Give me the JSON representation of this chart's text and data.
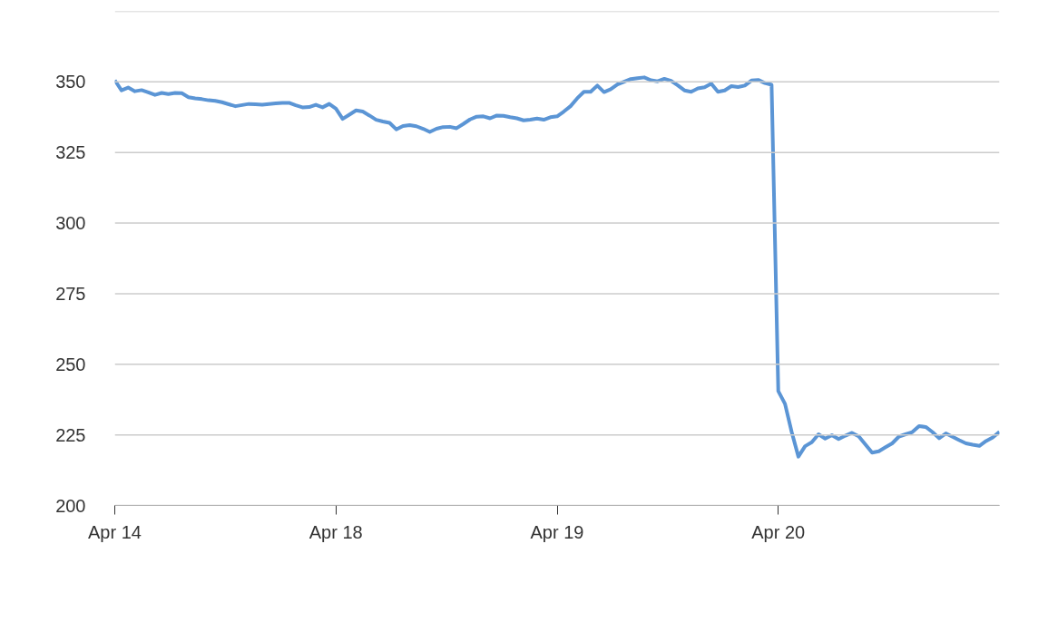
{
  "chart_data": {
    "type": "line",
    "categories": [
      "Apr 14",
      null,
      null,
      null,
      null,
      null,
      null,
      null,
      null,
      null,
      null,
      null,
      null,
      null,
      null,
      null,
      null,
      null,
      null,
      null,
      null,
      null,
      null,
      null,
      null,
      null,
      null,
      null,
      null,
      null,
      null,
      null,
      null,
      "Apr 18",
      null,
      null,
      null,
      null,
      null,
      null,
      null,
      null,
      null,
      null,
      null,
      null,
      null,
      null,
      null,
      null,
      null,
      null,
      null,
      null,
      null,
      null,
      null,
      null,
      null,
      null,
      null,
      null,
      null,
      null,
      null,
      null,
      "Apr 19",
      null,
      null,
      null,
      null,
      null,
      null,
      null,
      null,
      null,
      null,
      null,
      null,
      null,
      null,
      null,
      null,
      null,
      null,
      null,
      null,
      null,
      null,
      null,
      null,
      null,
      null,
      null,
      null,
      null,
      null,
      null,
      null,
      "Apr 20",
      null,
      null,
      null,
      null,
      null,
      null,
      null,
      null,
      null,
      null,
      null,
      null,
      null,
      null,
      null,
      null,
      null,
      null,
      null,
      null,
      null,
      null,
      null,
      null,
      null,
      null,
      null,
      null,
      null,
      null,
      null,
      null,
      null
    ],
    "series": [
      {
        "color": "#5b95d5",
        "values": [
          350.6,
          347.0,
          348.0,
          346.7,
          347.1,
          346.3,
          345.4,
          346.1,
          345.7,
          346.1,
          346.0,
          344.6,
          344.2,
          343.9,
          343.5,
          343.3,
          342.8,
          342.1,
          341.4,
          341.8,
          342.2,
          342.1,
          341.9,
          342.2,
          342.4,
          342.6,
          342.6,
          341.7,
          341.0,
          341.1,
          341.9,
          341.0,
          342.2,
          340.5,
          336.9,
          338.4,
          339.9,
          339.5,
          338.1,
          336.6,
          336.0,
          335.5,
          333.2,
          334.4,
          334.7,
          334.3,
          333.4,
          332.3,
          333.4,
          334.0,
          334.1,
          333.6,
          335.1,
          336.7,
          337.7,
          337.8,
          337.1,
          338.1,
          338.0,
          337.5,
          337.1,
          336.4,
          336.6,
          337.0,
          336.6,
          337.5,
          337.8,
          339.5,
          341.4,
          344.2,
          346.5,
          346.5,
          348.7,
          346.4,
          347.4,
          349.1,
          350.1,
          351.0,
          351.3,
          351.6,
          350.6,
          350.2,
          351.1,
          350.4,
          348.8,
          347.0,
          346.5,
          347.7,
          348.1,
          349.4,
          346.5,
          347.0,
          348.5,
          348.2,
          348.7,
          350.5,
          350.7,
          349.6,
          349.0,
          240.5,
          236.0,
          226.0,
          217.3,
          221.0,
          222.4,
          225.2,
          223.7,
          224.9,
          223.5,
          224.7,
          225.7,
          224.5,
          221.6,
          218.7,
          219.2,
          220.6,
          222.0,
          224.4,
          225.2,
          226.0,
          228.1,
          227.8,
          226.0,
          223.8,
          225.5,
          224.3,
          223.1,
          222.0,
          221.5,
          221.1,
          222.8,
          224.1,
          226.1
        ]
      }
    ],
    "ylim": [
      200,
      375
    ],
    "yticks": [
      200,
      225,
      250,
      275,
      300,
      325,
      350,
      {
        "value": 375,
        "label": null
      }
    ],
    "grid": "y",
    "line_style": "solid"
  }
}
